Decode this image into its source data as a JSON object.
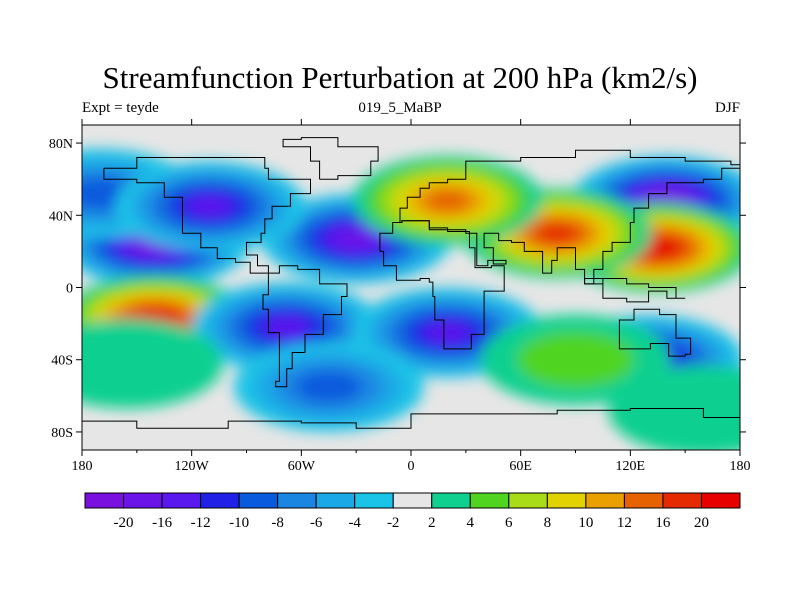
{
  "title": "Streamfunction Perturbation at 200 hPa (km2/s)",
  "subtitle_left": "Expt = teyde",
  "subtitle_center": "019_5_MaBP",
  "subtitle_right": "DJF",
  "chart_data": {
    "type": "heatmap",
    "title": "Streamfunction Perturbation at 200 hPa (km2/s)",
    "projection": "cylindrical equidistant, global",
    "x_ticks": [
      "180",
      "120W",
      "60W",
      "0",
      "60E",
      "120E",
      "180"
    ],
    "y_ticks": [
      "80N",
      "40N",
      "0",
      "40S",
      "80S"
    ],
    "xlim": [
      -180,
      180
    ],
    "ylim": [
      -90,
      90
    ],
    "units": "km2/s",
    "colorbar": {
      "boundaries": [
        -20,
        -16,
        -12,
        -10,
        -8,
        -6,
        -4,
        -2,
        2,
        4,
        6,
        8,
        10,
        12,
        16,
        20
      ],
      "labels": [
        "-20",
        "-16",
        "-12",
        "-10",
        "-8",
        "-6",
        "-4",
        "-2",
        "2",
        "4",
        "6",
        "8",
        "10",
        "12",
        "16",
        "20"
      ],
      "colors": [
        "#7a10e0",
        "#6a14e8",
        "#5a18ee",
        "#2020e6",
        "#0a5ade",
        "#1a86e2",
        "#1aa8e6",
        "#1ac4e6",
        "#e6e6e6",
        "#10d090",
        "#50d420",
        "#a8dc18",
        "#e2d200",
        "#eaa000",
        "#e66200",
        "#e62a00",
        "#e60000"
      ]
    },
    "features": [
      {
        "lon": -140,
        "lat": 25,
        "value": -20
      },
      {
        "lon": -30,
        "lat": 27,
        "value": -16
      },
      {
        "lon": 140,
        "lat": 48,
        "value": -20
      },
      {
        "lon": -170,
        "lat": 52,
        "value": -8
      },
      {
        "lon": 135,
        "lat": 22,
        "value": 20
      },
      {
        "lon": 80,
        "lat": 30,
        "value": 16
      },
      {
        "lon": 20,
        "lat": 48,
        "value": 12
      },
      {
        "lon": -140,
        "lat": -18,
        "value": 20
      },
      {
        "lon": -68,
        "lat": -22,
        "value": -12
      },
      {
        "lon": 20,
        "lat": -25,
        "value": -12
      },
      {
        "lon": 130,
        "lat": -40,
        "value": -12
      },
      {
        "lon": -45,
        "lat": -55,
        "value": -8
      },
      {
        "lon": -155,
        "lat": -42,
        "value": 2
      },
      {
        "lon": 90,
        "lat": -40,
        "value": 4
      },
      {
        "lon": -110,
        "lat": 45,
        "value": -12
      },
      {
        "lon": 160,
        "lat": -68,
        "value": 2
      }
    ]
  }
}
